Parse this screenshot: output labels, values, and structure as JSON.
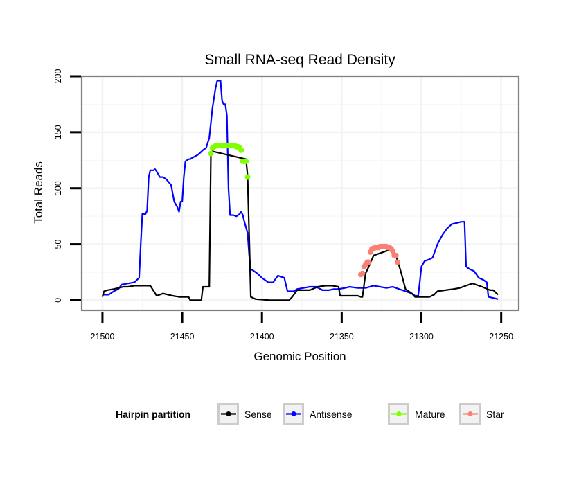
{
  "chart_data": {
    "type": "line",
    "title": "Small RNA-seq Read Density",
    "xlabel": "Genomic Position",
    "ylabel": "Total Reads",
    "x_reversed": true,
    "xlim": [
      21513,
      21239
    ],
    "ylim": [
      -9,
      200
    ],
    "x_ticks": [
      21500,
      21450,
      21400,
      21350,
      21300,
      21250
    ],
    "x_tick_labels": [
      "21500",
      "21450",
      "21400",
      "21350",
      "21300",
      "21250"
    ],
    "y_ticks": [
      0,
      50,
      100,
      150,
      200
    ],
    "y_tick_labels": [
      "0",
      "50",
      "100",
      "150",
      "200"
    ],
    "grid": true,
    "legend": {
      "title": "Hairpin partition",
      "position": "bottom",
      "entries": [
        {
          "label": "Sense",
          "color": "#000000"
        },
        {
          "label": "Antisense",
          "color": "#0000ff"
        },
        {
          "label": "Mature",
          "color": "#7fff00"
        },
        {
          "label": "Star",
          "color": "#fa8072"
        }
      ]
    },
    "series": [
      {
        "name": "Sense",
        "color": "#000000",
        "style": "line",
        "x": [
          21500,
          21499,
          21497,
          21493,
          21490,
          21487,
          21484,
          21480,
          21476,
          21473,
          21470,
          21466,
          21462,
          21456,
          21452,
          21450,
          21447,
          21446,
          21445,
          21440,
          21438,
          21437,
          21436,
          21434,
          21433,
          21432,
          21431,
          21410,
          21409,
          21407,
          21404,
          21395,
          21390,
          21385,
          21383,
          21381,
          21378,
          21374,
          21370,
          21365,
          21360,
          21356,
          21352,
          21351,
          21345,
          21340,
          21338,
          21337,
          21335,
          21333,
          21330,
          21320,
          21316,
          21313,
          21310,
          21306,
          21304,
          21300,
          21295,
          21292,
          21290,
          21285,
          21280,
          21276,
          21272,
          21268,
          21262,
          21257,
          21255,
          21252
        ],
        "y": [
          3,
          8,
          9,
          10,
          11,
          12,
          12,
          13,
          13,
          13,
          13,
          4,
          6,
          4,
          3,
          3,
          3,
          3,
          0,
          0,
          0,
          12,
          12,
          12,
          12,
          130,
          133,
          126,
          111,
          3,
          1,
          0,
          0,
          0,
          0,
          3,
          9,
          9,
          9,
          12,
          13,
          13,
          12,
          4,
          4,
          4,
          3,
          3,
          24,
          30,
          40,
          45,
          40,
          26,
          10,
          6,
          3,
          3,
          3,
          5,
          8,
          9,
          10,
          11,
          13,
          15,
          12,
          9,
          9,
          5
        ]
      },
      {
        "name": "Antisense",
        "color": "#0000ff",
        "style": "line",
        "x": [
          21500,
          21496,
          21493,
          21490,
          21488,
          21484,
          21480,
          21477,
          21476,
          21475,
          21473,
          21472,
          21471,
          21470,
          21468,
          21467,
          21466,
          21464,
          21462,
          21460,
          21457,
          21455,
          21453,
          21452,
          21451,
          21450,
          21449,
          21448,
          21446,
          21445,
          21444,
          21440,
          21437,
          21435,
          21433,
          21431,
          21429,
          21428,
          21426,
          21425,
          21424,
          21423,
          21422,
          21421,
          21420,
          21418,
          21416,
          21414,
          21413,
          21412,
          21411,
          21410,
          21409,
          21408,
          21407,
          21405,
          21403,
          21400,
          21396,
          21393,
          21390,
          21386,
          21384,
          21382,
          21380,
          21378,
          21374,
          21370,
          21366,
          21362,
          21358,
          21355,
          21352,
          21348,
          21345,
          21340,
          21335,
          21330,
          21326,
          21322,
          21318,
          21314,
          21310,
          21306,
          21304,
          21302,
          21300,
          21298,
          21296,
          21293,
          21290,
          21287,
          21284,
          21281,
          21278,
          21275,
          21273,
          21272,
          21270,
          21267,
          21264,
          21261,
          21259,
          21258,
          21255,
          21252
        ],
        "y": [
          5,
          5,
          8,
          10,
          14,
          15,
          16,
          20,
          50,
          77,
          77,
          80,
          110,
          116,
          116,
          117,
          115,
          110,
          110,
          108,
          103,
          88,
          83,
          79,
          88,
          88,
          110,
          124,
          126,
          126,
          127,
          130,
          134,
          136,
          145,
          172,
          190,
          196,
          196,
          178,
          175,
          175,
          165,
          100,
          76,
          76,
          75,
          77,
          79,
          76,
          70,
          65,
          60,
          40,
          28,
          26,
          24,
          20,
          16,
          16,
          22,
          20,
          8,
          8,
          8,
          10,
          11,
          12,
          12,
          9,
          9,
          10,
          10,
          11,
          12,
          11,
          11,
          13,
          12,
          11,
          12,
          10,
          8,
          6,
          4,
          4,
          30,
          35,
          36,
          38,
          50,
          58,
          64,
          68,
          69,
          70,
          70,
          30,
          28,
          26,
          20,
          18,
          16,
          3,
          2,
          1
        ]
      },
      {
        "name": "Mature",
        "color": "#7fff00",
        "style": "points",
        "x": [
          21432,
          21431,
          21430,
          21429,
          21428,
          21427,
          21426,
          21425,
          21424,
          21423,
          21422,
          21421,
          21420,
          21419,
          21418,
          21417,
          21416,
          21415,
          21414,
          21413,
          21412,
          21411,
          21410,
          21409
        ],
        "y": [
          131,
          136,
          137,
          138,
          138,
          138,
          138,
          138,
          138,
          138,
          138,
          138,
          138,
          138,
          138,
          138,
          137,
          137,
          136,
          134,
          124,
          124,
          124,
          110
        ]
      },
      {
        "name": "Star",
        "color": "#fa8072",
        "style": "points",
        "x": [
          21338,
          21337,
          21336,
          21335,
          21334,
          21333,
          21332,
          21331,
          21330,
          21329,
          21328,
          21327,
          21326,
          21325,
          21324,
          21323,
          21322,
          21321,
          21320,
          21319,
          21318,
          21317,
          21316,
          21315
        ],
        "y": [
          23,
          24,
          30,
          32,
          34,
          34,
          43,
          46,
          46,
          47,
          47,
          47,
          48,
          48,
          48,
          48,
          48,
          47,
          47,
          46,
          44,
          40,
          40,
          34
        ]
      }
    ]
  }
}
